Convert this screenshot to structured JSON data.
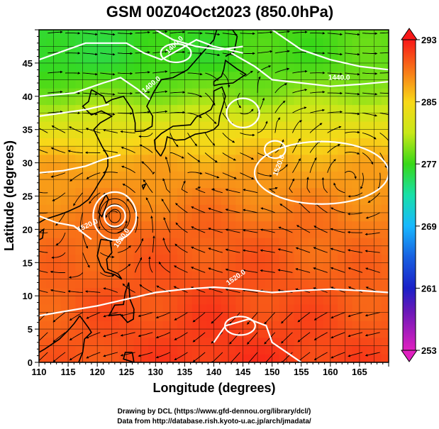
{
  "chart_data": {
    "type": "heatmap",
    "title": "GSM 00Z04Oct2023 (850.0hPa)",
    "xlabel": "Longitude (degrees)",
    "ylabel": "Latitude  (degrees)",
    "xlim": [
      110,
      170
    ],
    "ylim": [
      0,
      50
    ],
    "x_ticks": [
      110,
      115,
      120,
      125,
      130,
      135,
      140,
      145,
      150,
      155,
      160,
      165
    ],
    "y_ticks": [
      0,
      5,
      10,
      15,
      20,
      25,
      30,
      35,
      40,
      45
    ],
    "grid": true,
    "shaded_field": {
      "unit": "K",
      "approx_values": [
        {
          "lat": 45,
          "lon_west": 276,
          "lon_center": 277,
          "lon_east": 278
        },
        {
          "lat": 40,
          "lon_west": 279,
          "lon_center": 279,
          "lon_east": 280
        },
        {
          "lat": 35,
          "lon_west": 283,
          "lon_center": 284,
          "lon_east": 284
        },
        {
          "lat": 30,
          "lon_west": 287,
          "lon_center": 287,
          "lon_east": 287
        },
        {
          "lat": 20,
          "lon_west": 289,
          "lon_center": 290,
          "lon_east": 289
        },
        {
          "lat": 10,
          "lon_west": 290,
          "lon_center": 291,
          "lon_east": 290
        },
        {
          "lat": 0,
          "lon_west": 290,
          "lon_center": 292,
          "lon_east": 291
        }
      ]
    },
    "colorbar": {
      "min": 253,
      "max": 293,
      "tick_labels": [
        "293",
        "285",
        "277",
        "269",
        "261",
        "253"
      ],
      "tick_values": [
        293,
        285,
        277,
        269,
        261,
        253
      ],
      "colors": [
        {
          "value": 253,
          "color": "#e020c0"
        },
        {
          "value": 258,
          "color": "#6a18b8"
        },
        {
          "value": 261,
          "color": "#1a20c8"
        },
        {
          "value": 265,
          "color": "#1860e0"
        },
        {
          "value": 269,
          "color": "#18b8ff"
        },
        {
          "value": 273,
          "color": "#18e0a8"
        },
        {
          "value": 277,
          "color": "#38d818"
        },
        {
          "value": 281,
          "color": "#c8e818"
        },
        {
          "value": 285,
          "color": "#f8d818"
        },
        {
          "value": 289,
          "color": "#f87818"
        },
        {
          "value": 293,
          "color": "#f81818"
        }
      ]
    },
    "contours": {
      "color": "#ffffff",
      "labels": [
        "1400.0",
        "1400.0",
        "1440.0",
        "1520.0",
        "1520.0",
        "1520.0",
        "1520.0"
      ]
    },
    "features": {
      "typhoon_center": {
        "lon": 123,
        "lat": 22
      },
      "cyclones": [
        {
          "lon": 145,
          "lat": 37.5
        },
        {
          "lon": 163,
          "lat": 28
        },
        {
          "lon": 150,
          "lat": 32
        }
      ]
    }
  },
  "credits": {
    "line1": "Drawing by DCL (https://www.gfd-dennou.org/library/dcl/)",
    "line2": "Data from http://database.rish.kyoto-u.ac.jp/arch/jmadata/"
  }
}
